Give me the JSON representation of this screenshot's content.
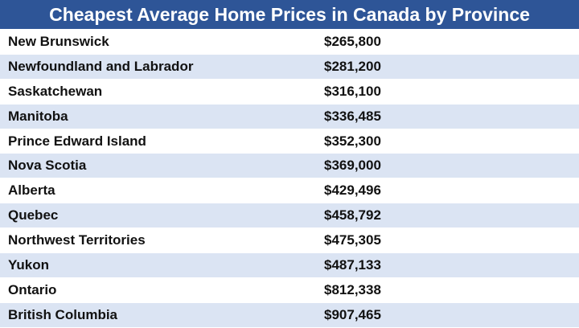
{
  "header": {
    "title": "Cheapest Average Home Prices in Canada by Province"
  },
  "table": {
    "rows": [
      [
        "New Brunswick",
        "$265,800"
      ],
      [
        "Newfoundland and Labrador",
        "$281,200"
      ],
      [
        "Saskatchewan",
        "$316,100"
      ],
      [
        "Manitoba",
        "$336,485"
      ],
      [
        "Prince Edward Island",
        "$352,300"
      ],
      [
        "Nova Scotia",
        "$369,000"
      ],
      [
        "Alberta",
        "$429,496"
      ],
      [
        "Quebec",
        "$458,792"
      ],
      [
        "Northwest Territories",
        "$475,305"
      ],
      [
        "Yukon",
        "$487,133"
      ],
      [
        "Ontario",
        "$812,338"
      ],
      [
        "British Columbia",
        "$907,465"
      ]
    ]
  }
}
